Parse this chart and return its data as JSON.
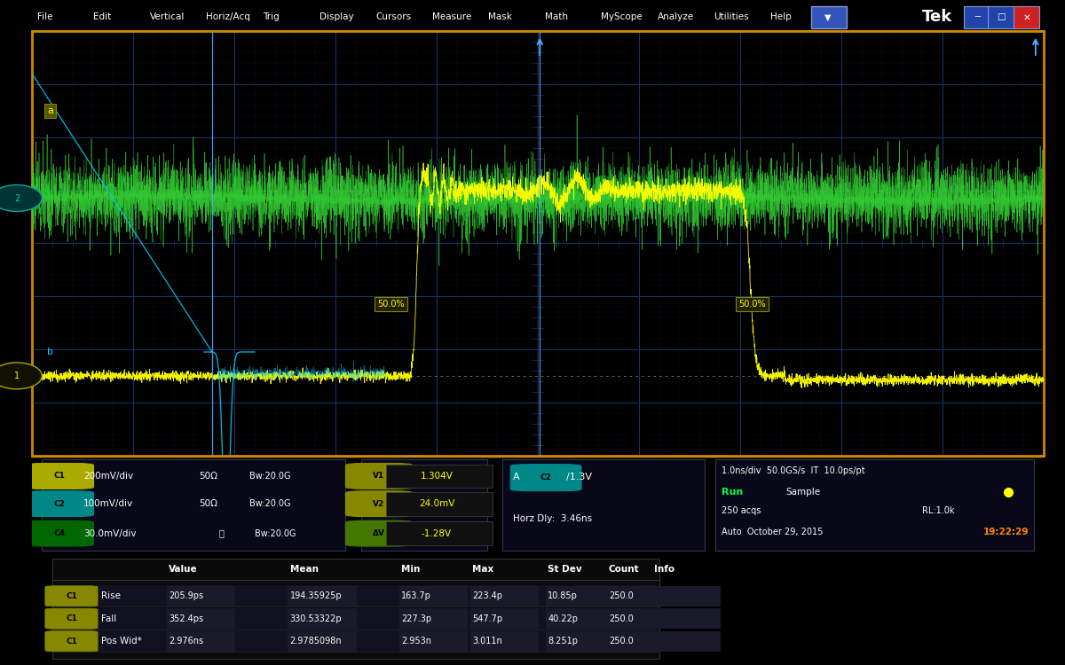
{
  "bg_color": "#000000",
  "screen_bg": "#000000",
  "grid_color": "#1a3a6a",
  "menu_bg": "#1e3a9e",
  "menu_items": [
    "File",
    "Edit",
    "Vertical",
    "Horiz/Acq",
    "Trig",
    "Display",
    "Cursors",
    "Measure",
    "Mask",
    "Math",
    "MyScope",
    "Analyze",
    "Utilities",
    "Help"
  ],
  "brand": "Tek",
  "yellow_line_color": "#ffff00",
  "green_line_color": "#33cc33",
  "cyan_line_color": "#00ccff",
  "border_color": "#cc8800",
  "cursor_label_color": "#ffff00",
  "cursor_label_bg": "#333300",
  "info_panel_bg": "#0a0a1a",
  "ch1_badge_color": "#aaaa00",
  "ch2_badge_color": "#008888",
  "ch4_badge_color": "#006600",
  "run_color": "#00ff44",
  "time_color": "#ff8800",
  "measurements": {
    "headers": [
      "",
      "Value",
      "Mean",
      "Min",
      "Max",
      "St Dev",
      "Count",
      "Info"
    ],
    "rows": [
      [
        "Rise",
        "205.9ps",
        "194.35925p",
        "163.7p",
        "223.4p",
        "10.85p",
        "250.0",
        ""
      ],
      [
        "Fall",
        "352.4ps",
        "330.53322p",
        "227.3p",
        "547.7p",
        "40.22p",
        "250.0",
        ""
      ],
      [
        "Pos Wid*",
        "2.976ns",
        "2.9785098n",
        "2.953n",
        "3.011n",
        "8.251p",
        "250.0",
        ""
      ]
    ]
  }
}
